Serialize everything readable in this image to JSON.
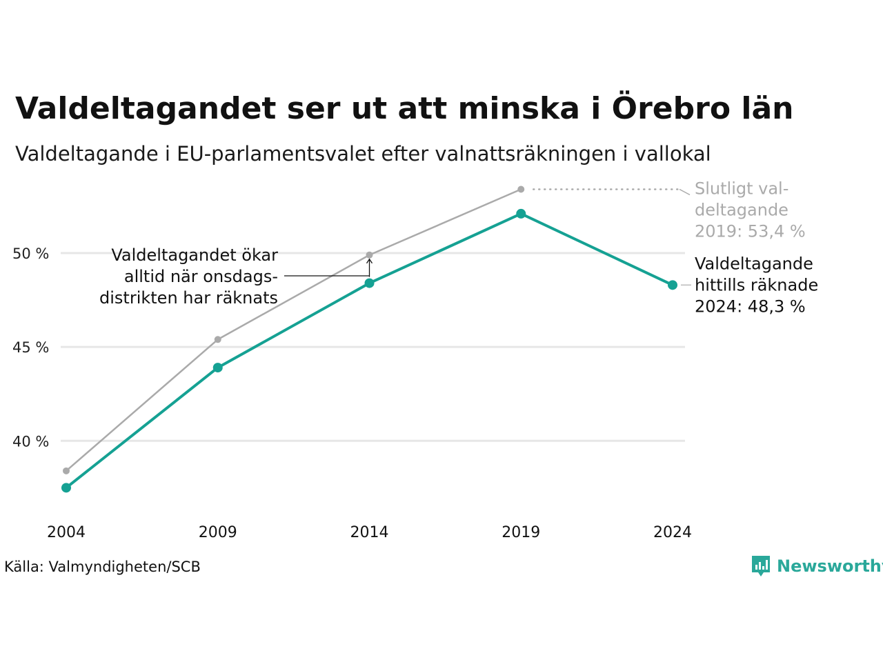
{
  "title": "Valdeltagandet ser ut att minska i Örebro län",
  "subtitle": "Valdeltagande i EU-parlamentsvalet efter valnattsräkningen i vallokal",
  "source": "Källa: Valmyndigheten/SCB",
  "brand": "Newsworthy",
  "colors": {
    "current": "#15a193",
    "final": "#aaaaaa",
    "grid": "#e6e6e6",
    "brand": "#2aa89a"
  },
  "annotations": {
    "final_2019": [
      "Slutligt val-",
      "deltagande",
      "2019: 53,4 %"
    ],
    "current_2024": [
      "Valdeltagande",
      "hittills räknade",
      "2024: 48,3 %"
    ],
    "wednesday": [
      "Valdeltagandet ökar",
      "alltid när onsdags-",
      "distrikten har räknats"
    ]
  },
  "chart_data": {
    "type": "line",
    "title": "Valdeltagandet ser ut att minska i Örebro län",
    "subtitle": "Valdeltagande i EU-parlamentsvalet efter valnattsräkningen i vallokal",
    "x": [
      "2004",
      "2009",
      "2014",
      "2019",
      "2024"
    ],
    "yticks": [
      40,
      45,
      50
    ],
    "ytick_labels": [
      "40 %",
      "45 %",
      "50 %"
    ],
    "ylim": [
      36.3,
      54.3
    ],
    "grid": true,
    "series": [
      {
        "key": "final",
        "values": [
          38.4,
          45.4,
          49.9,
          53.4,
          null
        ]
      },
      {
        "key": "current",
        "values": [
          37.5,
          43.9,
          48.4,
          52.1,
          48.3
        ]
      }
    ]
  }
}
